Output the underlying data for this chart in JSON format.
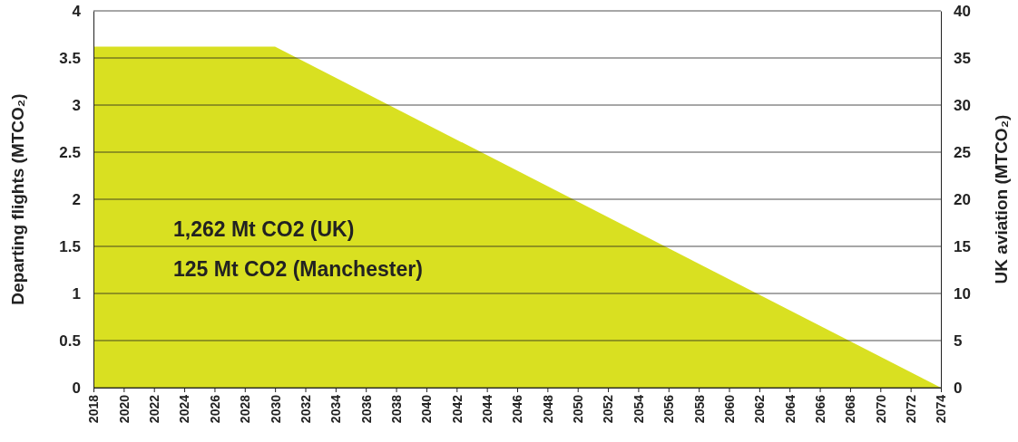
{
  "chart_data": {
    "type": "area",
    "x": [
      2018,
      2030,
      2074
    ],
    "series": [
      {
        "color": "#d9e021",
        "values": [
          3.62,
          3.62,
          0
        ]
      }
    ],
    "xlim": [
      2018,
      2074
    ],
    "xticks": [
      2018,
      2020,
      2022,
      2024,
      2026,
      2028,
      2030,
      2032,
      2034,
      2036,
      2038,
      2040,
      2042,
      2044,
      2046,
      2048,
      2050,
      2052,
      2054,
      2056,
      2058,
      2060,
      2062,
      2064,
      2066,
      2068,
      2070,
      2072,
      2074
    ],
    "ylim": [
      0,
      4
    ],
    "yticks": [
      0,
      0.5,
      1,
      1.5,
      2,
      2.5,
      3,
      3.5,
      4
    ],
    "y2lim": [
      0,
      40
    ],
    "y2ticks": [
      0,
      5,
      10,
      15,
      20,
      25,
      30,
      35,
      40
    ],
    "ylabel": "Departing flights (MTCO₂)",
    "y2label": "UK aviation (MTCO₂)",
    "annotations": [
      "1,262 Mt CO2 (UK)",
      "125 Mt CO2 (Manchester)"
    ],
    "grid": "y"
  }
}
